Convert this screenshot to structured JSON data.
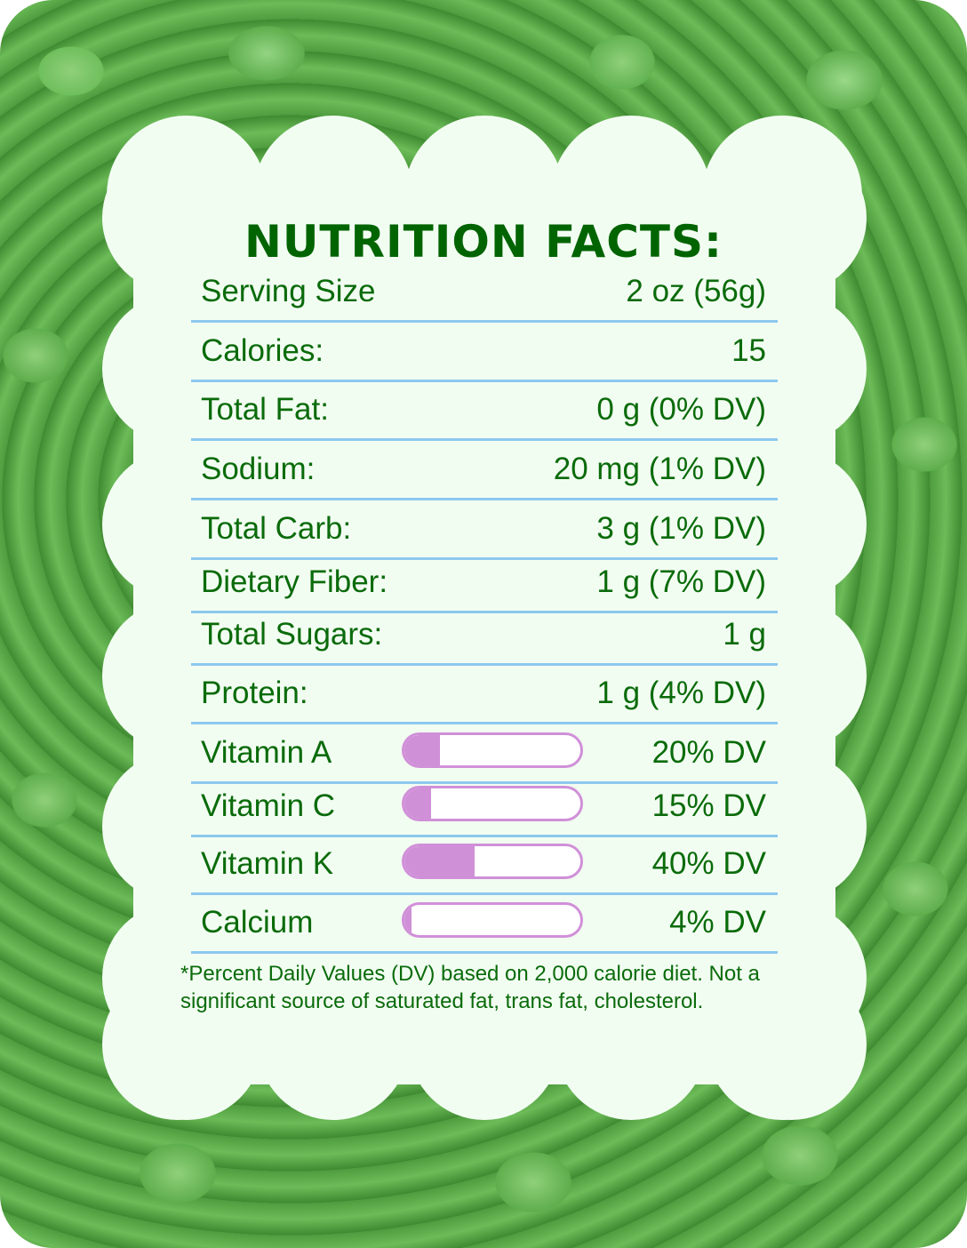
{
  "title": "NUTRITION FACTS:",
  "colors": {
    "text": "#0a6b0a",
    "title": "#006400",
    "divider": "#8cc8ee",
    "bar": "#d090d8",
    "panel": "#f2fdf2"
  },
  "rows": [
    {
      "label": "Serving Size",
      "value": "2 oz (56g)"
    },
    {
      "label": "Calories:",
      "value": "15"
    },
    {
      "label": "Total Fat:",
      "value": "0 g (0% DV)"
    },
    {
      "label": "Sodium:",
      "value": "20 mg (1% DV)"
    },
    {
      "label": "Total Carb:",
      "value": "3 g (1% DV)"
    },
    {
      "label": "Dietary Fiber:",
      "value": "1 g (7% DV)"
    },
    {
      "label": "Total Sugars:",
      "value": "1 g"
    },
    {
      "label": "Protein:",
      "value": "1 g (4% DV)"
    }
  ],
  "vitamins": [
    {
      "label": "Vitamin A",
      "value": "20% DV",
      "percent": 20
    },
    {
      "label": "Vitamin C",
      "value": "15% DV",
      "percent": 15
    },
    {
      "label": "Vitamin K",
      "value": "40% DV",
      "percent": 40
    },
    {
      "label": "Calcium",
      "value": "4% DV",
      "percent": 4
    }
  ],
  "footnote": "*Percent Daily Values (DV) based on 2,000 calorie diet. Not a significant source of saturated fat, trans fat, cholesterol."
}
